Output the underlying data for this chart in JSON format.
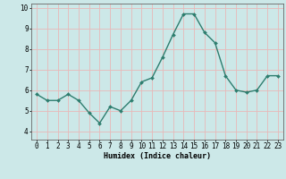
{
  "x": [
    0,
    1,
    2,
    3,
    4,
    5,
    6,
    7,
    8,
    9,
    10,
    11,
    12,
    13,
    14,
    15,
    16,
    17,
    18,
    19,
    20,
    21,
    22,
    23
  ],
  "y": [
    5.8,
    5.5,
    5.5,
    5.8,
    5.5,
    4.9,
    4.4,
    5.2,
    5.0,
    5.5,
    6.4,
    6.6,
    7.6,
    8.7,
    9.7,
    9.7,
    8.8,
    8.3,
    6.7,
    6.0,
    5.9,
    6.0,
    6.7,
    6.7
  ],
  "line_color": "#2d7d6e",
  "marker": "D",
  "marker_size": 2.0,
  "bg_color": "#cce8e8",
  "grid_color": "#e8b8b8",
  "axis_color": "#666666",
  "xlabel": "Humidex (Indice chaleur)",
  "ylim": [
    3.6,
    10.2
  ],
  "xlim": [
    -0.5,
    23.5
  ],
  "yticks": [
    4,
    5,
    6,
    7,
    8,
    9,
    10
  ],
  "xticks": [
    0,
    1,
    2,
    3,
    4,
    5,
    6,
    7,
    8,
    9,
    10,
    11,
    12,
    13,
    14,
    15,
    16,
    17,
    18,
    19,
    20,
    21,
    22,
    23
  ],
  "xlabel_fontsize": 6.0,
  "tick_fontsize": 5.5,
  "linewidth": 1.0
}
